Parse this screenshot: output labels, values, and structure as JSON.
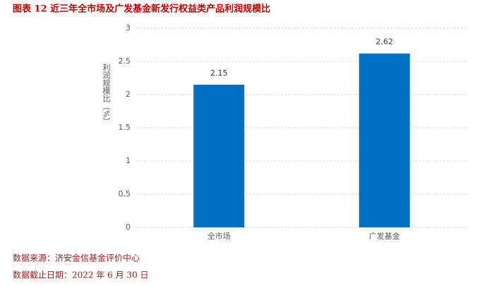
{
  "chart_data": {
    "type": "bar",
    "title": "图表 12 近三年全市场及广发基金新发行权益类产品利润规模比",
    "y_label": "利润规模比（%）",
    "categories": [
      "全市场",
      "广发基金"
    ],
    "values": [
      2.15,
      2.62
    ],
    "color": "#0070c0",
    "ylim": [
      0,
      3
    ],
    "yticks": [
      0,
      0.5,
      1,
      1.5,
      2,
      2.5,
      3
    ],
    "grid": true,
    "notes": [
      "数据来源：济安金信基金评价中心",
      "数据截止日期：2022 年 6 月 30 日"
    ]
  }
}
